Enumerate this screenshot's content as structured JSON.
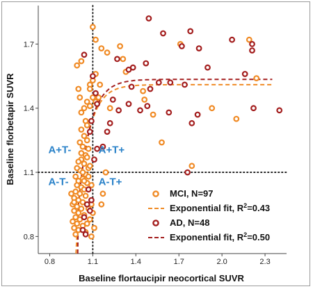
{
  "chart_data": {
    "type": "scatter",
    "xlabel": "Baseline flortaucipir neocortical SUVR",
    "ylabel": "Baseline florbetapir SUVR",
    "xlim": [
      0.72,
      2.45
    ],
    "ylim": [
      0.72,
      1.88
    ],
    "xticks": [
      {
        "value": 0.8,
        "label": "0.8"
      },
      {
        "value": 1.1,
        "label": "1.1"
      },
      {
        "value": 1.4,
        "label": "1.4"
      },
      {
        "value": 1.7,
        "label": "1.7"
      },
      {
        "value": 2.0,
        "label": "2.0"
      },
      {
        "value": 2.3,
        "label": "2.3"
      }
    ],
    "yticks": [
      {
        "value": 0.8,
        "label": "0.8"
      },
      {
        "value": 1.1,
        "label": "1.1"
      },
      {
        "value": 1.4,
        "label": "1.4"
      },
      {
        "value": 1.7,
        "label": "1.7"
      }
    ],
    "cutoffs": {
      "x": 1.1,
      "y": 1.1
    },
    "quadrants": [
      {
        "label": "A+T-",
        "x": 0.79,
        "y": 1.19
      },
      {
        "label": "A+T+",
        "x": 1.14,
        "y": 1.19
      },
      {
        "label": "A-T-",
        "x": 0.79,
        "y": 1.04
      },
      {
        "label": "A-T+",
        "x": 1.14,
        "y": 1.04
      }
    ],
    "colors": {
      "mci": "#f08a24",
      "ad": "#a31d1d",
      "quadrant": "#2a82c9"
    },
    "legend_position": "bottom-right",
    "series": [
      {
        "name": "MCI, N=97",
        "key": "mci",
        "points": [
          [
            1.1,
            1.78
          ],
          [
            1.12,
            1.72
          ],
          [
            1.16,
            1.68
          ],
          [
            1.2,
            1.66
          ],
          [
            1.29,
            1.69
          ],
          [
            1.31,
            1.63
          ],
          [
            1.33,
            1.57
          ],
          [
            1.12,
            1.56
          ],
          [
            1.1,
            1.53
          ],
          [
            1.15,
            1.51
          ],
          [
            1.08,
            1.51
          ],
          [
            1.08,
            1.49
          ],
          [
            1.14,
            1.45
          ],
          [
            1.1,
            1.45
          ],
          [
            1.12,
            1.43
          ],
          [
            1.06,
            1.43
          ],
          [
            1.08,
            1.41
          ],
          [
            1.22,
            1.4
          ],
          [
            1.45,
            1.48
          ],
          [
            1.46,
            1.44
          ],
          [
            1.52,
            1.37
          ],
          [
            1.58,
            1.24
          ],
          [
            1.79,
            1.13
          ],
          [
            1.93,
            1.4
          ],
          [
            2.1,
            1.35
          ],
          [
            2.24,
            1.54
          ],
          [
            2.19,
            1.72
          ],
          [
            1.71,
            1.7
          ],
          [
            0.99,
            1.6
          ],
          [
            1.02,
            1.62
          ],
          [
            1.0,
            1.49
          ],
          [
            1.01,
            1.45
          ],
          [
            1.04,
            1.4
          ],
          [
            1.02,
            1.38
          ],
          [
            1.05,
            1.34
          ],
          [
            1.06,
            1.32
          ],
          [
            1.02,
            1.3
          ],
          [
            1.04,
            1.27
          ],
          [
            1.06,
            1.25
          ],
          [
            1.01,
            1.24
          ],
          [
            1.03,
            1.22
          ],
          [
            1.07,
            1.21
          ],
          [
            1.05,
            1.18
          ],
          [
            1.02,
            1.16
          ],
          [
            1.04,
            1.14
          ],
          [
            1.07,
            1.12
          ],
          [
            1.01,
            1.11
          ],
          [
            1.05,
            1.09
          ],
          [
            0.98,
            1.08
          ],
          [
            1.03,
            1.07
          ],
          [
            1.0,
            1.06
          ],
          [
            1.06,
            1.05
          ],
          [
            0.99,
            1.04
          ],
          [
            1.02,
            1.03
          ],
          [
            1.04,
            1.02
          ],
          [
            0.98,
            1.01
          ],
          [
            1.01,
            1.0
          ],
          [
            1.05,
            0.99
          ],
          [
            0.97,
            0.98
          ],
          [
            1.0,
            0.97
          ],
          [
            1.03,
            0.96
          ],
          [
            0.96,
            0.95
          ],
          [
            0.99,
            0.94
          ],
          [
            1.02,
            0.93
          ],
          [
            0.97,
            0.92
          ],
          [
            1.0,
            0.91
          ],
          [
            1.04,
            0.9
          ],
          [
            0.98,
            0.89
          ],
          [
            1.01,
            0.88
          ],
          [
            0.96,
            0.87
          ],
          [
            0.99,
            0.86
          ],
          [
            1.03,
            0.85
          ],
          [
            0.97,
            0.84
          ],
          [
            1.0,
            0.83
          ],
          [
            1.05,
            0.82
          ],
          [
            0.98,
            0.81
          ],
          [
            1.02,
            1.19
          ],
          [
            1.06,
            1.17
          ],
          [
            1.0,
            1.15
          ],
          [
            1.08,
            1.13
          ],
          [
            1.03,
            1.1
          ],
          [
            1.07,
            1.08
          ],
          [
            0.99,
            1.12
          ],
          [
            1.04,
            1.06
          ],
          [
            1.09,
            1.04
          ],
          [
            0.95,
            1.0
          ],
          [
            0.97,
            0.96
          ],
          [
            1.09,
            0.95
          ],
          [
            1.07,
            0.93
          ],
          [
            1.1,
            0.91
          ],
          [
            1.08,
            0.88
          ],
          [
            1.06,
            0.86
          ],
          [
            1.11,
            0.84
          ],
          [
            1.09,
            0.8
          ],
          [
            1.16,
            0.95
          ],
          [
            1.17,
            1.0
          ],
          [
            1.19,
            1.1
          ]
        ]
      },
      {
        "name": "Exponential fit, R2=0.43",
        "key": "mci_fit",
        "asymptote": 1.51,
        "k": 12.5,
        "xmin": 1.0,
        "p0": [
          0.983,
          0.72
        ]
      },
      {
        "name": "AD, N=48",
        "key": "ad",
        "points": [
          [
            1.49,
            1.82
          ],
          [
            1.59,
            1.75
          ],
          [
            1.78,
            1.76
          ],
          [
            1.84,
            1.68
          ],
          [
            2.07,
            1.72
          ],
          [
            2.21,
            1.7
          ],
          [
            2.21,
            1.67
          ],
          [
            1.72,
            1.69
          ],
          [
            1.27,
            1.63
          ],
          [
            1.47,
            1.61
          ],
          [
            1.38,
            1.59
          ],
          [
            1.35,
            1.58
          ],
          [
            1.9,
            1.59
          ],
          [
            2.16,
            1.56
          ],
          [
            1.56,
            1.52
          ],
          [
            1.64,
            1.52
          ],
          [
            1.74,
            1.51
          ],
          [
            1.37,
            1.5
          ],
          [
            1.24,
            1.44
          ],
          [
            1.28,
            1.39
          ],
          [
            1.35,
            1.42
          ],
          [
            1.5,
            1.49
          ],
          [
            1.48,
            1.41
          ],
          [
            1.43,
            1.39
          ],
          [
            1.63,
            1.38
          ],
          [
            1.83,
            1.37
          ],
          [
            1.79,
            1.33
          ],
          [
            2.22,
            1.4
          ],
          [
            2.4,
            1.39
          ],
          [
            1.22,
            1.33
          ],
          [
            1.2,
            1.29
          ],
          [
            1.17,
            1.22
          ],
          [
            1.13,
            1.21
          ],
          [
            1.76,
            1.1
          ],
          [
            1.1,
            1.55
          ],
          [
            1.12,
            1.47
          ],
          [
            1.04,
            1.65
          ],
          [
            1.13,
            1.42
          ],
          [
            1.09,
            1.34
          ],
          [
            1.08,
            1.29
          ],
          [
            1.11,
            1.16
          ],
          [
            1.09,
            0.97
          ],
          [
            1.06,
            0.95
          ],
          [
            1.08,
            0.92
          ],
          [
            1.03,
            0.83
          ],
          [
            1.05,
            0.81
          ],
          [
            1.04,
            0.89
          ],
          [
            1.07,
            1.02
          ]
        ]
      },
      {
        "name": "Exponential fit, R2=0.50",
        "key": "ad_fit",
        "asymptote": 1.535,
        "k": 12.0,
        "xmin": 1.0,
        "p0": [
          0.995,
          0.72
        ]
      }
    ]
  },
  "legend": [
    {
      "kind": "marker",
      "series": "mci",
      "text": "MCI, N=97"
    },
    {
      "kind": "line",
      "series": "mci",
      "text": "Exponential fit, R",
      "sup": "2",
      "tail": "=0.43"
    },
    {
      "kind": "marker",
      "series": "ad",
      "text": "AD, N=48"
    },
    {
      "kind": "line",
      "series": "ad",
      "text": "Exponential fit,  R",
      "sup": "2",
      "tail": "=0.50"
    }
  ]
}
